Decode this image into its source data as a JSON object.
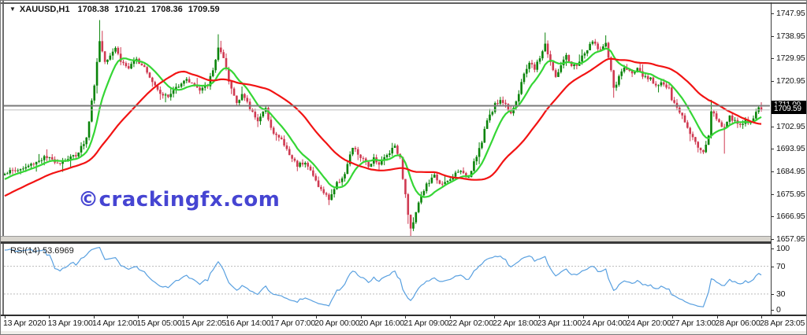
{
  "header": {
    "symbol_label": "XAUUSD,H1",
    "dropdown_glyph": "▼",
    "ohlc": {
      "open": "1708.38",
      "high": "1710.21",
      "low": "1708.36",
      "close": "1709.59"
    }
  },
  "watermark": {
    "text": "©crackingfx.com",
    "color": "#4645d2"
  },
  "price_scale": {
    "ticks": [
      "1747.95",
      "1738.95",
      "1729.95",
      "1720.95",
      "1702.95",
      "1693.95",
      "1684.95",
      "1675.95",
      "1666.95",
      "1657.95"
    ],
    "line_price_label": "1711.09",
    "bid_price_label": "1709.59"
  },
  "rsi_panel": {
    "label": "RSI(14) 53.6969",
    "levels": [
      "100",
      "70",
      "30",
      "0"
    ],
    "level_values": [
      100,
      70,
      30,
      0
    ],
    "upper_band": 70,
    "lower_band": 30,
    "line_color": "#59a0e0",
    "band_line_color": "#bbbbbb"
  },
  "time_scale": {
    "labels": [
      "13 Apr 2020",
      "13 Apr 19:00",
      "14 Apr 12:00",
      "15 Apr 05:00",
      "15 Apr 22:05",
      "16 Apr 14:00",
      "17 Apr 07:00",
      "20 Apr 00:00",
      "20 Apr 16:00",
      "21 Apr 09:00",
      "22 Apr 02:00",
      "22 Apr 18:00",
      "23 Apr 11:00",
      "24 Apr 04:00",
      "24 Apr 20:00",
      "27 Apr 13:00",
      "28 Apr 06:00",
      "28 Apr 23:05"
    ]
  },
  "chart_data": {
    "type": "candlestick",
    "symbol": "XAUUSD",
    "timeframe": "H1",
    "title": "XAUUSD,H1 1708.38 1710.21 1708.36 1709.59",
    "last_ohlc": {
      "open": 1708.38,
      "high": 1710.21,
      "low": 1708.36,
      "close": 1709.59
    },
    "current_bid": 1709.59,
    "horizontal_line_level": 1711.09,
    "horizontal_line_color": "#7a7a7a",
    "bid_line_color": "#bdbdbd",
    "y_axis": {
      "min": 1657.95,
      "max": 1747.95,
      "tick_interval": 9.0
    },
    "x_axis_labels": [
      "13 Apr 2020",
      "13 Apr 19:00",
      "14 Apr 12:00",
      "15 Apr 05:00",
      "15 Apr 22:05",
      "16 Apr 14:00",
      "17 Apr 07:00",
      "20 Apr 00:00",
      "20 Apr 16:00",
      "21 Apr 09:00",
      "22 Apr 02:00",
      "22 Apr 18:00",
      "23 Apr 11:00",
      "24 Apr 04:00",
      "24 Apr 20:00",
      "27 Apr 13:00",
      "28 Apr 06:00",
      "28 Apr 23:05"
    ],
    "bars": 288,
    "candle_colors": {
      "bull": "#0a840a",
      "bear": "#cf3a52"
    },
    "close_anchors": [
      [
        0,
        1684.5
      ],
      [
        7,
        1686
      ],
      [
        15,
        1690.5
      ],
      [
        21,
        1688.5
      ],
      [
        27,
        1691.5
      ],
      [
        31,
        1698
      ],
      [
        34,
        1720
      ],
      [
        36,
        1737
      ],
      [
        38,
        1729
      ],
      [
        42,
        1734.5
      ],
      [
        44,
        1729
      ],
      [
        47,
        1726
      ],
      [
        50,
        1729.5
      ],
      [
        53,
        1727
      ],
      [
        56,
        1721
      ],
      [
        59,
        1716.5
      ],
      [
        62,
        1714.5
      ],
      [
        65,
        1718.5
      ],
      [
        68,
        1721.5
      ],
      [
        71,
        1720.5
      ],
      [
        74,
        1717
      ],
      [
        77,
        1719.5
      ],
      [
        79,
        1725
      ],
      [
        81,
        1734.5
      ],
      [
        83,
        1729.5
      ],
      [
        85,
        1720.5
      ],
      [
        88,
        1712.5
      ],
      [
        90,
        1716
      ],
      [
        93,
        1710
      ],
      [
        96,
        1705.5
      ],
      [
        99,
        1709.5
      ],
      [
        102,
        1700
      ],
      [
        105,
        1697.5
      ],
      [
        108,
        1691.5
      ],
      [
        111,
        1687.5
      ],
      [
        114,
        1689
      ],
      [
        117,
        1683
      ],
      [
        120,
        1677.5
      ],
      [
        123,
        1674
      ],
      [
        126,
        1680
      ],
      [
        129,
        1684
      ],
      [
        132,
        1694.5
      ],
      [
        135,
        1690.5
      ],
      [
        138,
        1687
      ],
      [
        140,
        1690.5
      ],
      [
        142,
        1688
      ],
      [
        145,
        1691.5
      ],
      [
        148,
        1695.5
      ],
      [
        150,
        1690
      ],
      [
        153,
        1668
      ],
      [
        154,
        1661.5
      ],
      [
        157,
        1673
      ],
      [
        160,
        1679.5
      ],
      [
        163,
        1683
      ],
      [
        166,
        1679.5
      ],
      [
        169,
        1681.5
      ],
      [
        172,
        1685.5
      ],
      [
        174,
        1683.5
      ],
      [
        176,
        1683
      ],
      [
        178,
        1689
      ],
      [
        181,
        1696.5
      ],
      [
        183,
        1705.5
      ],
      [
        186,
        1711.5
      ],
      [
        188,
        1713.5
      ],
      [
        190,
        1711.5
      ],
      [
        192,
        1708.5
      ],
      [
        195,
        1715.5
      ],
      [
        197,
        1724
      ],
      [
        199,
        1728.5
      ],
      [
        201,
        1725.5
      ],
      [
        203,
        1730.5
      ],
      [
        205,
        1735.5
      ],
      [
        207,
        1728.5
      ],
      [
        209,
        1722
      ],
      [
        211,
        1727.5
      ],
      [
        213,
        1730.5
      ],
      [
        215,
        1726.5
      ],
      [
        217,
        1727.5
      ],
      [
        219,
        1730.5
      ],
      [
        221,
        1733.5
      ],
      [
        223,
        1736.5
      ],
      [
        226,
        1733.5
      ],
      [
        228,
        1735.5
      ],
      [
        230,
        1725.5
      ],
      [
        231,
        1717.5
      ],
      [
        233,
        1722.5
      ],
      [
        235,
        1726.5
      ],
      [
        237,
        1724.5
      ],
      [
        240,
        1725.5
      ],
      [
        242,
        1722.5
      ],
      [
        245,
        1721.5
      ],
      [
        247,
        1719.5
      ],
      [
        249,
        1720.5
      ],
      [
        252,
        1717.5
      ],
      [
        253,
        1713.5
      ],
      [
        255,
        1710
      ],
      [
        257,
        1707.5
      ],
      [
        259,
        1703
      ],
      [
        261,
        1698.5
      ],
      [
        263,
        1694.5
      ],
      [
        265,
        1693
      ],
      [
        267,
        1699
      ],
      [
        268,
        1709.5
      ],
      [
        270,
        1705.5
      ],
      [
        272,
        1703.5
      ],
      [
        273,
        1702.5
      ],
      [
        275,
        1706.5
      ],
      [
        277,
        1704.5
      ],
      [
        279,
        1703.5
      ],
      [
        281,
        1705.5
      ],
      [
        282,
        1703.5
      ],
      [
        284,
        1706.5
      ],
      [
        286,
        1710.5
      ],
      [
        287,
        1709.59
      ]
    ],
    "wick_overrides": [
      {
        "i": 36,
        "high": 1745.3
      },
      {
        "i": 37,
        "high": 1741.0
      },
      {
        "i": 81,
        "high": 1739.6
      },
      {
        "i": 82,
        "high": 1737.0
      },
      {
        "i": 111,
        "low": 1685.0
      },
      {
        "i": 123,
        "low": 1671.5
      },
      {
        "i": 153,
        "low": 1664.0
      },
      {
        "i": 154,
        "low": 1658.4
      },
      {
        "i": 205,
        "high": 1740.3
      },
      {
        "i": 228,
        "high": 1739.2
      },
      {
        "i": 231,
        "low": 1714.3
      },
      {
        "i": 268,
        "high": 1713.5
      },
      {
        "i": 273,
        "low": 1692.0
      }
    ],
    "overlays": [
      {
        "name": "fast-ma",
        "type": "lwma",
        "period": 14,
        "color": "#35d635"
      },
      {
        "name": "slow-ma",
        "type": "sma",
        "period": 34,
        "color": "#f21313"
      }
    ],
    "indicator": {
      "name": "RSI",
      "period": 14,
      "current_value": 53.6969,
      "range": [
        0,
        100
      ],
      "levels": [
        70,
        30
      ],
      "color": "#59a0e0"
    }
  }
}
